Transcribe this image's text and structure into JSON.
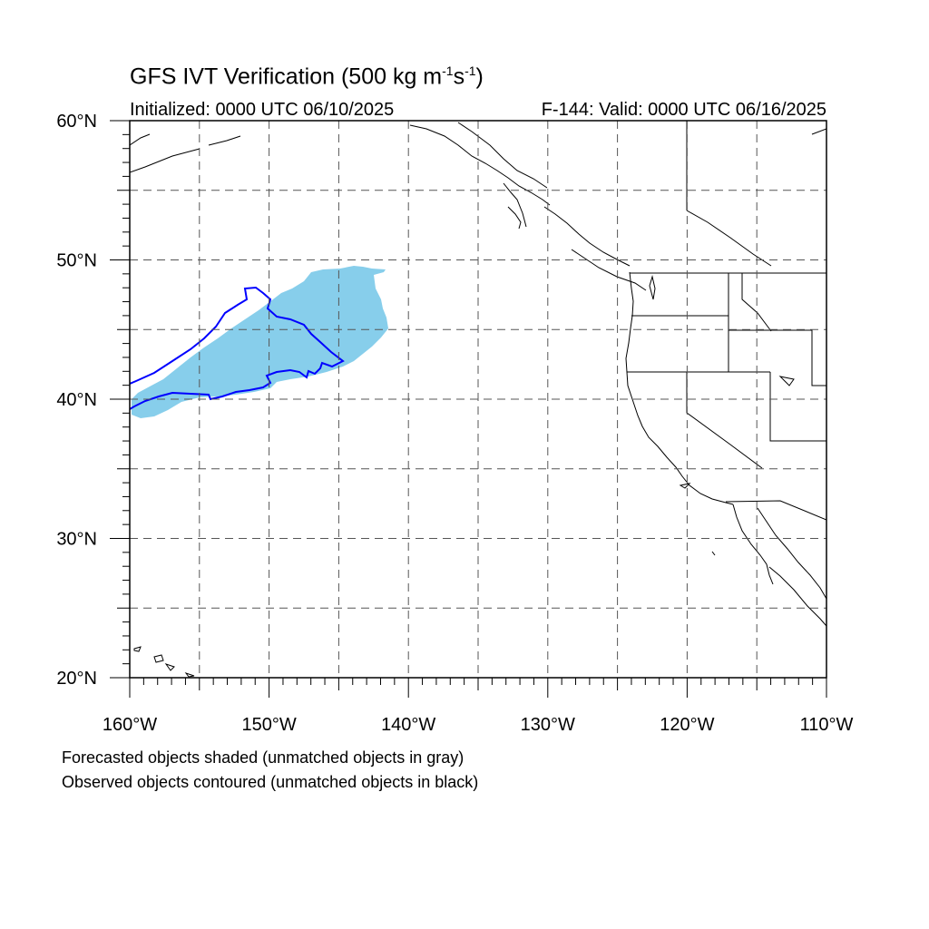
{
  "header": {
    "title_main": "GFS IVT Verification (500 kg m",
    "title_exp1": "-1",
    "title_mid": "s",
    "title_exp2": "-1",
    "title_end": ")",
    "initialized": "Initialized: 0000 UTC 06/10/2025",
    "valid": "F-144: Valid: 0000 UTC 06/16/2025"
  },
  "map": {
    "lon_range": [
      -160,
      -110
    ],
    "lat_range": [
      20,
      60
    ],
    "lat_tick_labels": [
      "20°N",
      "30°N",
      "40°N",
      "50°N",
      "60°N"
    ],
    "lon_tick_labels": [
      "160°W",
      "150°W",
      "140°W",
      "130°W",
      "120°W",
      "110°W"
    ],
    "grid": "dashed, every 5 degrees",
    "colors": {
      "forecast_fill": "#87ceeb",
      "observed_contour": "#0000ff",
      "coastline": "#000000",
      "grid": "#555555"
    }
  },
  "legend": {
    "line1": "Forecasted objects shaded (unmatched objects in gray)",
    "line2": "Observed objects contoured (unmatched objects in black)"
  }
}
